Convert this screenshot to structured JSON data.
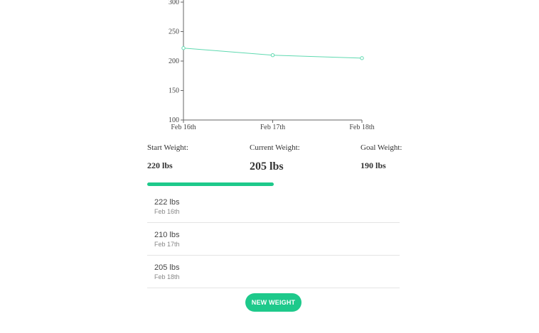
{
  "chart_data": {
    "type": "line",
    "categories": [
      "Feb 16th",
      "Feb 17th",
      "Feb 18th"
    ],
    "series": [
      {
        "values": [
          222,
          210,
          205
        ]
      }
    ],
    "yticks": [
      100,
      150,
      200,
      250,
      300
    ],
    "ylim": [
      100,
      300
    ],
    "grid": false,
    "title": "",
    "xlabel": "",
    "ylabel": ""
  },
  "colors": {
    "accent": "#1ec98b",
    "line": "#5fd9b0"
  },
  "stats": {
    "start_label": "Start Weight:",
    "start_value": "220 lbs",
    "current_label": "Current Weight:",
    "current_value": "205 lbs",
    "goal_label": "Goal Weight:",
    "goal_value": "190 lbs"
  },
  "progress": {
    "fraction": 0.5
  },
  "entries": [
    {
      "weight": "222 lbs",
      "date": "Feb 16th"
    },
    {
      "weight": "210 lbs",
      "date": "Feb 17th"
    },
    {
      "weight": "205 lbs",
      "date": "Feb 18th"
    }
  ],
  "actions": {
    "new_weight_label": "NEW WEIGHT"
  }
}
